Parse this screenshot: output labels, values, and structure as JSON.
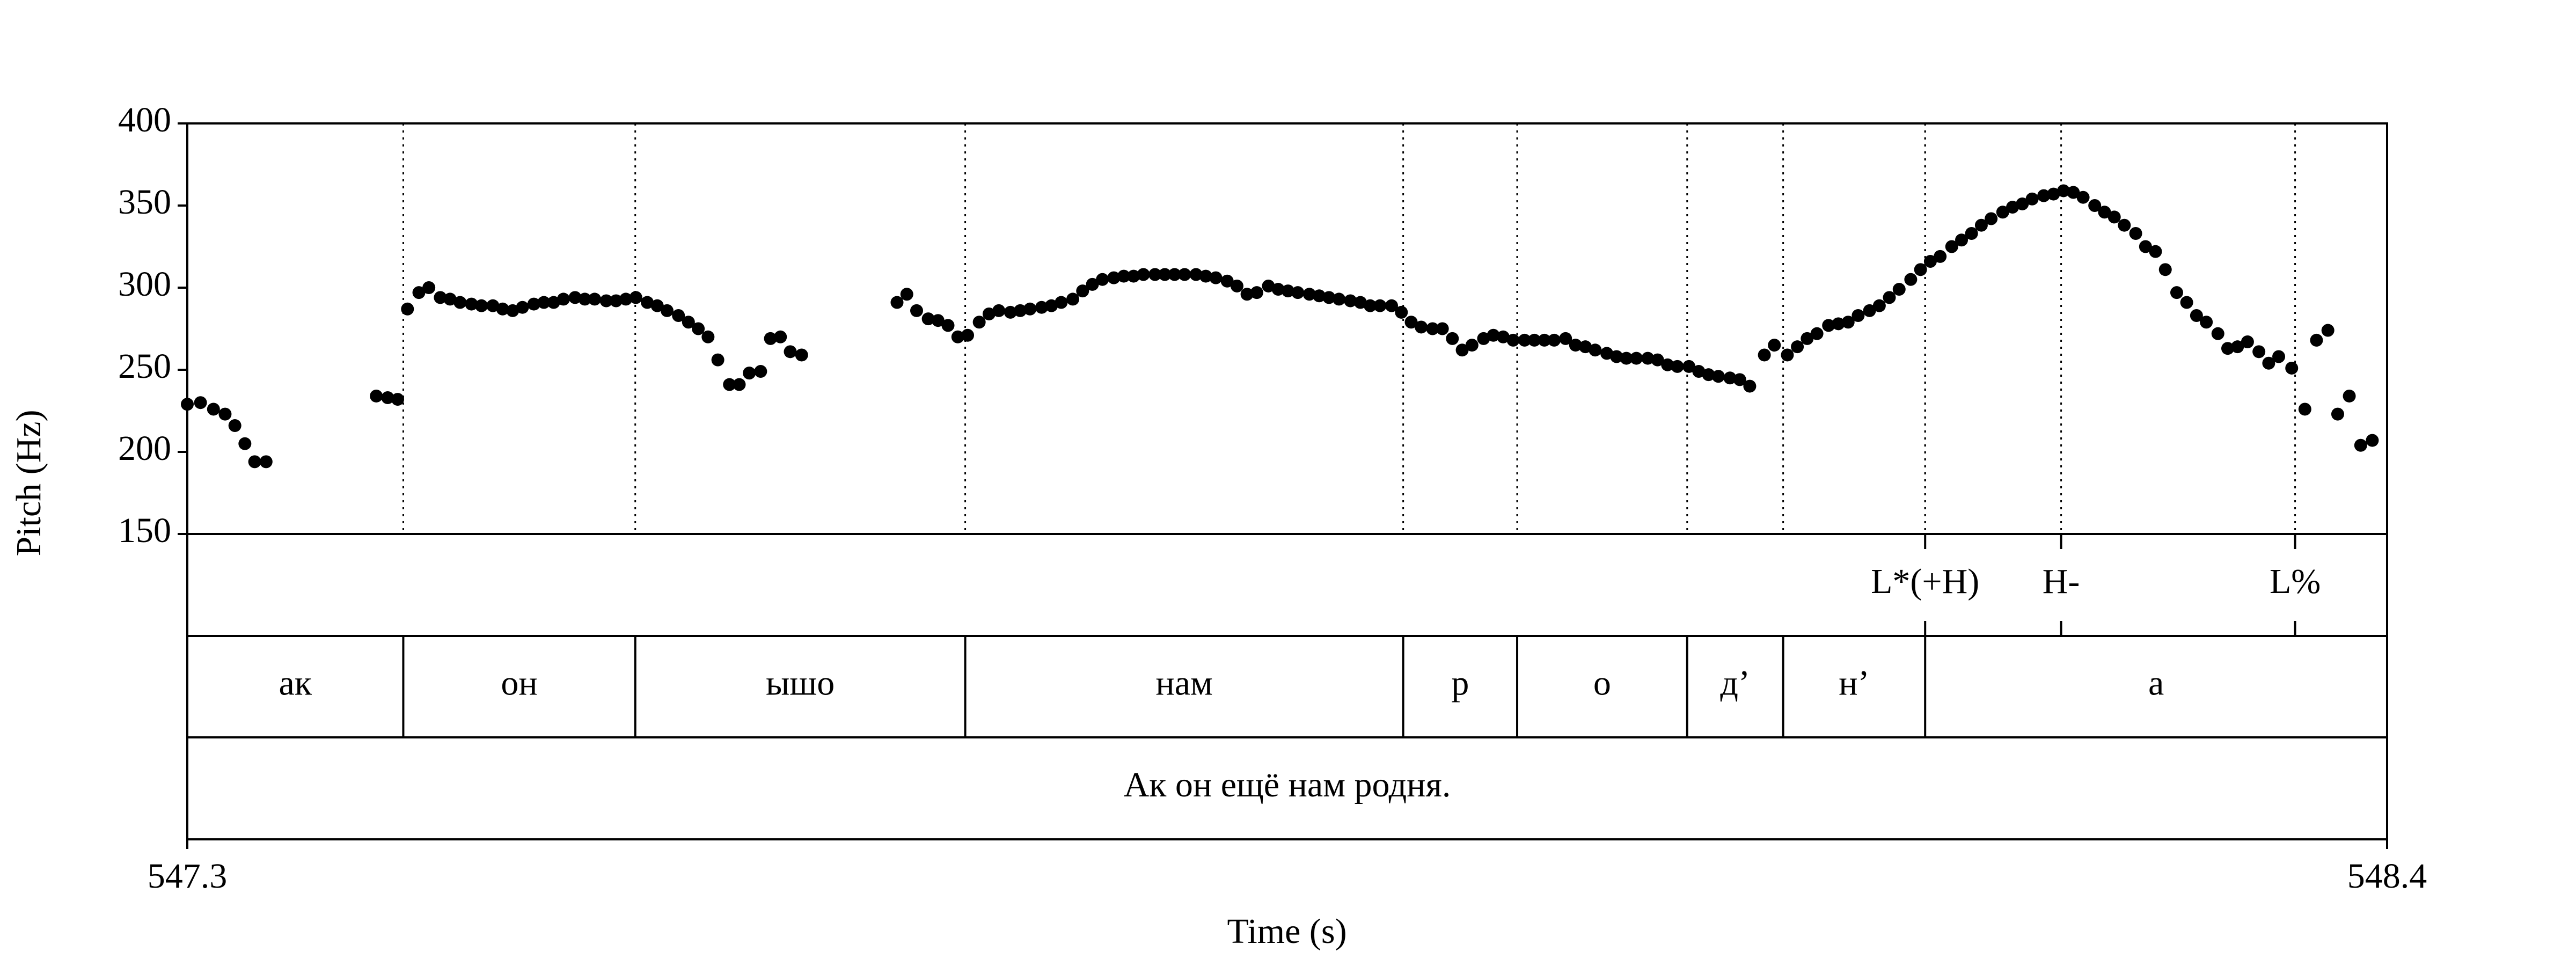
{
  "chart_data": {
    "type": "scatter",
    "x_label": "Time (s)",
    "y_label": "Pitch (Hz)",
    "xlim": [
      547.3,
      548.4
    ],
    "ylim": [
      150,
      400
    ],
    "xticks": [
      547.3,
      548.4
    ],
    "yticks": [
      150,
      200,
      250,
      300,
      350,
      400
    ],
    "series": [
      {
        "color": "#000000",
        "x": [
          547.3,
          547.3066,
          547.3131,
          547.3189,
          547.3238,
          547.3288,
          547.3337,
          547.3394,
          547.3945,
          547.4002,
          547.4052,
          547.4101,
          547.4158,
          547.4208,
          547.4265,
          547.4314,
          547.4364,
          547.4421,
          547.4471,
          547.4528,
          547.4577,
          547.4627,
          547.4676,
          547.4733,
          547.4783,
          547.4832,
          547.4881,
          547.4939,
          547.4988,
          547.5037,
          547.5095,
          547.5144,
          547.5193,
          547.5243,
          547.53,
          547.535,
          547.5399,
          547.5456,
          547.5506,
          547.5555,
          547.5604,
          547.5653,
          547.5711,
          547.576,
          547.581,
          547.5867,
          547.5916,
          547.5966,
          547.6015,
          547.6072,
          547.6549,
          547.6598,
          547.6647,
          547.6705,
          547.6754,
          547.6804,
          547.6853,
          547.6902,
          547.696,
          547.7009,
          547.7058,
          547.7116,
          547.7165,
          547.7214,
          547.7272,
          547.7321,
          547.737,
          547.7428,
          547.7477,
          547.7526,
          547.7576,
          547.7633,
          547.7683,
          547.7732,
          547.7781,
          547.7839,
          547.7888,
          547.7937,
          547.7987,
          547.8044,
          547.8093,
          547.8143,
          547.82,
          547.8249,
          547.8299,
          547.8348,
          547.8406,
          547.8455,
          547.8504,
          547.8553,
          547.8611,
          547.866,
          547.8709,
          547.8759,
          547.8816,
          547.8866,
          547.8915,
          547.8964,
          547.9022,
          547.9071,
          547.912,
          547.917,
          547.9227,
          547.9276,
          547.9326,
          547.9375,
          547.9424,
          547.9482,
          547.9531,
          547.958,
          547.963,
          547.9687,
          547.9736,
          547.9786,
          547.9835,
          547.9892,
          547.9942,
          547.9991,
          548.004,
          548.0098,
          548.0147,
          548.0196,
          548.0246,
          548.0303,
          548.0352,
          548.0402,
          548.0451,
          548.0509,
          548.0558,
          548.0607,
          548.0656,
          548.0714,
          548.0763,
          548.0813,
          548.0886,
          548.0936,
          548.1001,
          548.1051,
          548.11,
          548.1149,
          548.1207,
          548.1256,
          548.1305,
          548.1355,
          548.1412,
          548.1461,
          548.1511,
          548.156,
          548.1618,
          548.1667,
          548.1716,
          548.1765,
          548.1823,
          548.1872,
          548.1922,
          548.1971,
          548.202,
          548.2078,
          548.2127,
          548.2176,
          548.2225,
          548.2283,
          548.2332,
          548.2382,
          548.2431,
          548.248,
          548.2538,
          548.2587,
          548.2636,
          548.2686,
          548.2743,
          548.2792,
          548.2842,
          548.2891,
          548.2948,
          548.2998,
          548.3047,
          548.3096,
          548.3154,
          548.3203,
          548.3252,
          548.3302,
          548.3359,
          548.3408,
          548.3458,
          548.3523,
          548.3589,
          548.3647,
          548.3704,
          548.3753,
          548.3811,
          548.3868,
          548.3926
        ],
        "values": [
          229,
          230,
          226,
          223,
          216,
          205,
          194,
          194,
          234,
          233,
          232,
          287,
          297,
          300,
          294,
          293,
          291,
          290,
          289,
          289,
          287,
          286,
          288,
          290,
          291,
          291,
          293,
          294,
          293,
          293,
          292,
          292,
          293,
          294,
          291,
          289,
          286,
          283,
          279,
          275,
          270,
          256,
          241,
          241,
          248,
          249,
          269,
          270,
          261,
          259,
          291,
          296,
          286,
          281,
          280,
          277,
          270,
          271,
          279,
          284,
          286,
          285,
          286,
          287,
          288,
          289,
          291,
          293,
          298,
          302,
          305,
          306,
          307,
          307,
          308,
          308,
          308,
          308,
          308,
          308,
          307,
          306,
          304,
          301,
          296,
          297,
          301,
          299,
          298,
          297,
          296,
          295,
          294,
          293,
          292,
          291,
          289,
          289,
          289,
          285,
          279,
          276,
          275,
          275,
          269,
          262,
          265,
          269,
          271,
          270,
          268,
          268,
          268,
          268,
          268,
          269,
          265,
          264,
          262,
          260,
          258,
          257,
          257,
          257,
          256,
          253,
          252,
          252,
          249,
          247,
          246,
          245,
          244,
          240,
          259,
          265,
          259,
          264,
          269,
          272,
          277,
          278,
          279,
          283,
          286,
          289,
          294,
          299,
          305,
          311,
          316,
          319,
          325,
          329,
          333,
          338,
          342,
          346,
          349,
          351,
          354,
          356,
          357,
          359,
          358,
          355,
          350,
          346,
          343,
          338,
          333,
          325,
          322,
          311,
          297,
          291,
          283,
          279,
          272,
          263,
          264,
          267,
          261,
          254,
          258,
          251,
          226,
          268,
          274,
          223,
          234,
          204,
          207
        ]
      }
    ],
    "tones": {
      "times": [
        548.169,
        548.237,
        548.354
      ],
      "labels": [
        "L*(+H)",
        "H-",
        "L%"
      ]
    },
    "intervals": {
      "boundaries": [
        547.408,
        547.524,
        547.689,
        547.908,
        547.965,
        548.05,
        548.098,
        548.169
      ],
      "labels": [
        "ак",
        "он",
        "ышо",
        "нам",
        "р",
        "о",
        "д’",
        "н’",
        "а"
      ]
    },
    "sentence": "Ак он ещё нам родня."
  }
}
